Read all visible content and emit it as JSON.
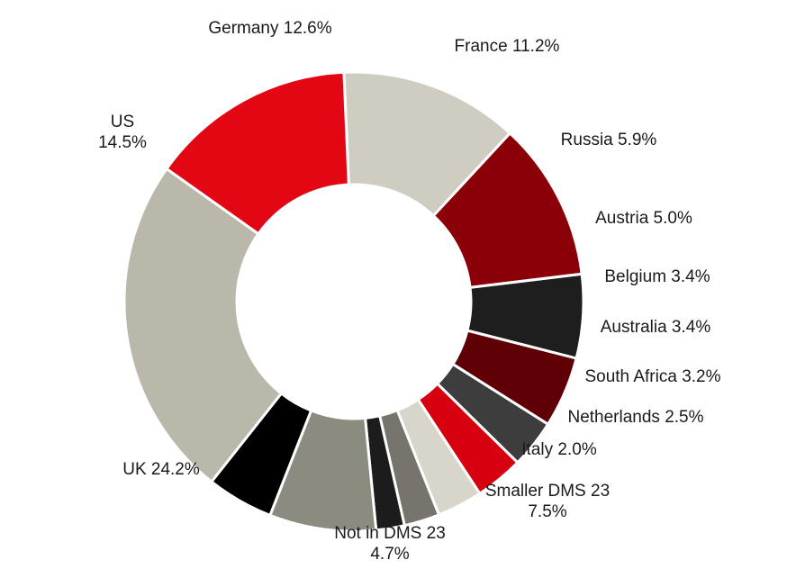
{
  "chart_data": {
    "type": "pie",
    "variant": "donut",
    "title": "",
    "slices": [
      {
        "name": "Germany",
        "value": 12.6,
        "label": "Germany 12.6%",
        "color": "#cfcdc2"
      },
      {
        "name": "France",
        "value": 11.2,
        "label": "France 11.2%",
        "color": "#8b0008"
      },
      {
        "name": "Russia",
        "value": 5.9,
        "label": "Russia 5.9%",
        "color": "#1e1e1e"
      },
      {
        "name": "Austria",
        "value": 5.0,
        "label": "Austria 5.0%",
        "color": "#5f0006"
      },
      {
        "name": "Belgium",
        "value": 3.4,
        "label": "Belgium 3.4%",
        "color": "#3d3d3d"
      },
      {
        "name": "Australia",
        "value": 3.4,
        "label": "Australia 3.4%",
        "color": "#d7000f"
      },
      {
        "name": "South Africa",
        "value": 3.2,
        "label": "South Africa 3.2%",
        "color": "#d8d6cb"
      },
      {
        "name": "Netherlands",
        "value": 2.5,
        "label": "Netherlands 2.5%",
        "color": "#77746c"
      },
      {
        "name": "Italy",
        "value": 2.0,
        "label": "Italy 2.0%",
        "color": "#1c1c1c"
      },
      {
        "name": "Smaller DMS 23",
        "value": 7.5,
        "label": [
          "Smaller DMS 23",
          "7.5%"
        ],
        "color": "#8c8b80"
      },
      {
        "name": "Not in DMS 23",
        "value": 4.7,
        "label": [
          "Not in DMS 23",
          "4.7%"
        ],
        "color": "#000000"
      },
      {
        "name": "UK",
        "value": 24.2,
        "label": "UK 24.2%",
        "color": "#bab8ab"
      },
      {
        "name": "US",
        "value": 14.5,
        "label": [
          "US",
          "14.5%"
        ],
        "color": "#e30613"
      }
    ]
  }
}
